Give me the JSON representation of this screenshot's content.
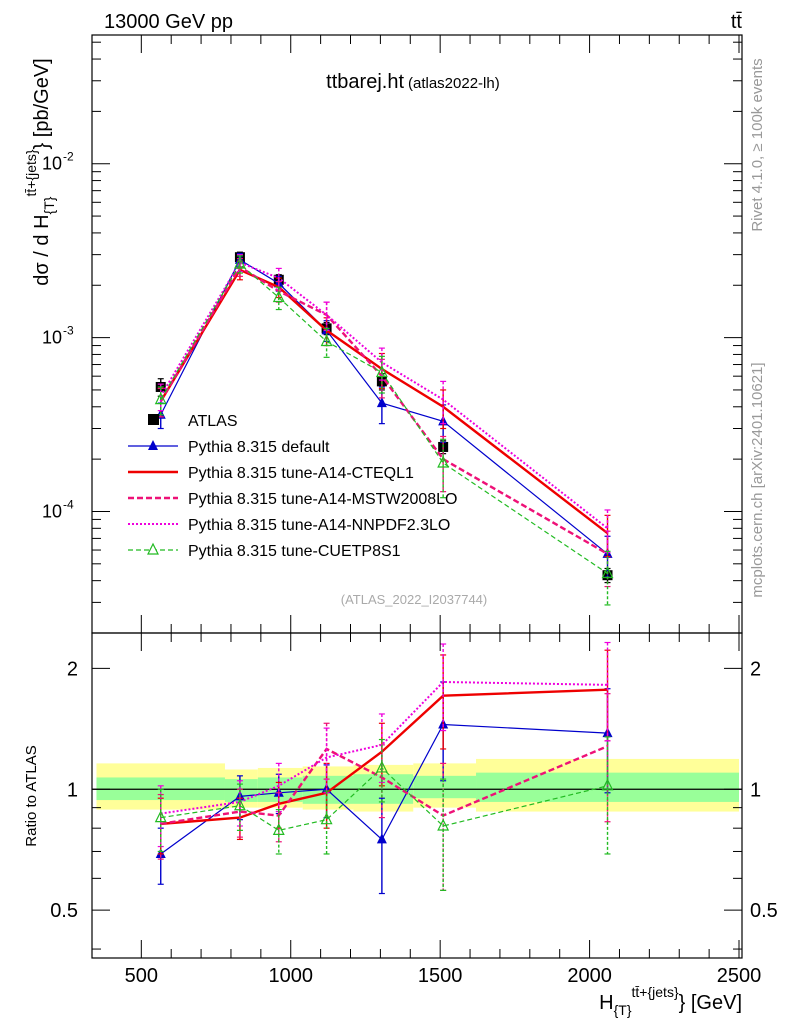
{
  "header": {
    "energy": "13000 GeV pp",
    "process": "tt̄",
    "title": "ttbarej.ht",
    "subtitle": "(atlas2022-lh)",
    "analysis_id": "(ATLAS_2022_I2037744)",
    "side_rivet": "Rivet 4.1.0, ≥ 100k events",
    "side_mcplots": "mcplots.cern.ch [arXiv:2401.10621]"
  },
  "colors": {
    "atlas": "#000000",
    "default": "#0000cc",
    "cteql1": "#ee0000",
    "mstw": "#ee1177",
    "nnpdf": "#ee00dd",
    "cuetp8s1": "#22bb22",
    "band_inner": "#99ff99",
    "band_outer": "#ffff99"
  },
  "chart_data": [
    {
      "type": "line",
      "panel": "main",
      "title": "ttbarej.ht",
      "xlabel": "H_{T}^{tt̄+{jets}} [GeV]",
      "ylabel": "dσ / d H_{T}^{tt̄+{jets}} [pb/GeV]",
      "yscale": "log",
      "xlim": [
        335,
        2510
      ],
      "ylim": [
        2e-05,
        0.055
      ],
      "ytick_labels": [
        "10^{-4}",
        "10^{-3}",
        "10^{-2}"
      ],
      "x": [
        565,
        830,
        960,
        1120,
        1305,
        1510,
        2060
      ],
      "series": [
        {
          "key": "atlas",
          "name": "ATLAS",
          "marker": "square",
          "values": [
            0.00052,
            0.0029,
            0.00215,
            0.00113,
            0.00056,
            0.000235,
            4.3e-05
          ],
          "err": [
            6e-05,
            0.0002,
            0.00015,
            9e-05,
            6e-05,
            2e-05,
            4e-06
          ]
        },
        {
          "key": "default",
          "name": "Pythia 8.315 default",
          "marker": "triangle",
          "values": [
            0.00036,
            0.0028,
            0.00205,
            0.0011,
            0.00042,
            0.00033,
            5.7e-05
          ],
          "err": [
            6e-05,
            0.00025,
            0.0002,
            0.00015,
            0.0001,
            8e-05,
            1.5e-05
          ]
        },
        {
          "key": "cteql1",
          "name": "Pythia 8.315 tune-A14-CTEQL1",
          "marker": "none",
          "values": [
            0.00043,
            0.00245,
            0.00195,
            0.0011,
            0.00066,
            0.0004,
            7.5e-05
          ],
          "err": [
            8e-05,
            0.0003,
            0.00025,
            0.0002,
            0.00015,
            0.0001,
            2e-05
          ]
        },
        {
          "key": "mstw",
          "name": "Pythia 8.315 tune-A14-MSTW2008LO",
          "marker": "none",
          "values": [
            0.00043,
            0.00255,
            0.00185,
            0.00135,
            0.0006,
            0.0002,
            5.7e-05
          ],
          "err": [
            8e-05,
            0.0003,
            0.00025,
            0.00025,
            0.00015,
            7e-05,
            2e-05
          ]
        },
        {
          "key": "nnpdf",
          "name": "Pythia 8.315 tune-A14-NNPDF2.3LO",
          "marker": "none",
          "values": [
            0.00046,
            0.0027,
            0.0022,
            0.00135,
            0.00072,
            0.00044,
            8e-05
          ],
          "err": [
            8e-05,
            0.0003,
            0.0003,
            0.00025,
            0.00015,
            0.00012,
            2.2e-05
          ]
        },
        {
          "key": "cuetp8s1",
          "name": "Pythia 8.315 tune-CUETP8S1",
          "marker": "open-triangle",
          "values": [
            0.00044,
            0.00265,
            0.0017,
            0.00095,
            0.00063,
            0.00019,
            4.4e-05
          ],
          "err": [
            8e-05,
            0.0003,
            0.00025,
            0.00018,
            0.00015,
            7e-05,
            1.5e-05
          ]
        }
      ]
    },
    {
      "type": "line",
      "panel": "ratio",
      "ylabel": "Ratio to ATLAS",
      "xlabel": "H_{T}^{tt̄+{jets}} [GeV]",
      "xlim": [
        335,
        2510
      ],
      "ylim": [
        0.38,
        2.45
      ],
      "yticks": [
        0.5,
        1,
        2
      ],
      "ytick_labels": [
        "0.5",
        "1",
        "2"
      ],
      "xticks": [
        500,
        1000,
        1500,
        2000,
        2500
      ],
      "xtick_labels": [
        "500",
        "1000",
        "1500",
        "2000",
        "2500"
      ],
      "bins": [
        [
          350,
          780
        ],
        [
          780,
          890
        ],
        [
          890,
          1040
        ],
        [
          1040,
          1210
        ],
        [
          1210,
          1410
        ],
        [
          1410,
          1620
        ],
        [
          1620,
          2500
        ]
      ],
      "band_inner": [
        [
          0.94,
          1.07
        ],
        [
          0.93,
          1.06
        ],
        [
          0.93,
          1.07
        ],
        [
          0.92,
          1.08
        ],
        [
          0.92,
          1.09
        ],
        [
          0.95,
          1.08
        ],
        [
          0.93,
          1.1
        ]
      ],
      "band_outer": [
        [
          0.89,
          1.16
        ],
        [
          0.9,
          1.12
        ],
        [
          0.9,
          1.13
        ],
        [
          0.89,
          1.14
        ],
        [
          0.88,
          1.15
        ],
        [
          0.9,
          1.16
        ],
        [
          0.88,
          1.19
        ]
      ],
      "x": [
        565,
        830,
        960,
        1120,
        1305,
        1510,
        2060
      ],
      "series": [
        {
          "key": "default",
          "values": [
            0.69,
            0.96,
            0.98,
            1.0,
            0.75,
            1.45,
            1.38
          ],
          "err": [
            0.11,
            0.12,
            0.11,
            0.15,
            0.2,
            0.4,
            0.4
          ]
        },
        {
          "key": "cteql1",
          "values": [
            0.82,
            0.85,
            0.92,
            0.98,
            1.24,
            1.71,
            1.77
          ],
          "err": [
            0.13,
            0.1,
            0.12,
            0.18,
            0.22,
            0.45,
            0.45
          ]
        },
        {
          "key": "mstw",
          "values": [
            0.82,
            0.88,
            0.86,
            1.26,
            1.07,
            0.86,
            1.28
          ],
          "err": [
            0.15,
            0.12,
            0.12,
            0.2,
            0.22,
            0.3,
            0.45
          ]
        },
        {
          "key": "nnpdf",
          "values": [
            0.87,
            0.93,
            1.02,
            1.2,
            1.29,
            1.85,
            1.82
          ],
          "err": [
            0.15,
            0.12,
            0.14,
            0.22,
            0.25,
            0.45,
            0.5
          ]
        },
        {
          "key": "cuetp8s1",
          "values": [
            0.85,
            0.91,
            0.79,
            0.84,
            1.13,
            0.81,
            1.02
          ],
          "err": [
            0.15,
            0.12,
            0.1,
            0.15,
            0.2,
            0.25,
            0.33
          ]
        }
      ]
    }
  ]
}
